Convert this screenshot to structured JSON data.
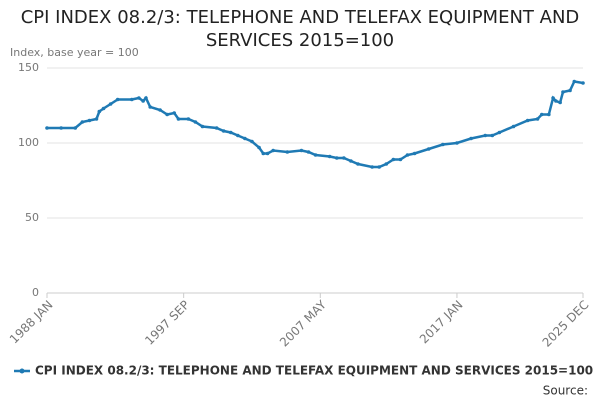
{
  "chart_data": {
    "type": "line",
    "title": "CPI INDEX 08.2/3: TELEPHONE AND TELEFAX EQUIPMENT AND SERVICES 2015=100",
    "subtitle": "Index, base year = 100",
    "source": "Source:",
    "x": [
      1988,
      1989,
      1990,
      1990.5,
      1991,
      1991.5,
      1991.7,
      1992,
      1992.5,
      1993,
      1994,
      1994.5,
      1994.8,
      1995,
      1995.3,
      1996,
      1996.5,
      1997,
      1997.3,
      1998,
      1998.5,
      1999,
      2000,
      2000.5,
      2001,
      2001.5,
      2002,
      2002.5,
      2003,
      2003.3,
      2003.6,
      2004,
      2005,
      2006,
      2006.5,
      2007,
      2008,
      2008.5,
      2009,
      2009.5,
      2010,
      2011,
      2011.5,
      2012,
      2012.5,
      2013,
      2013.5,
      2014,
      2015,
      2016,
      2017,
      2018,
      2019,
      2019.5,
      2020,
      2021,
      2022,
      2022.7,
      2023,
      2023.5,
      2023.8,
      2024,
      2024.3,
      2024.5,
      2025,
      2025.3,
      2025.917
    ],
    "series": [
      {
        "name": "CPI INDEX 08.2/3: TELEPHONE AND TELEFAX EQUIPMENT AND SERVICES 2015=100",
        "color": "#1f7ab4",
        "values": [
          110,
          110,
          110,
          114,
          115,
          116,
          121,
          123,
          126,
          129,
          129,
          130,
          128,
          130,
          124,
          122,
          119,
          120,
          116,
          116,
          114,
          111,
          110,
          108,
          107,
          105,
          103,
          101,
          97,
          93,
          93,
          95,
          94,
          95,
          94,
          92,
          91,
          90,
          90,
          88,
          86,
          84,
          84,
          86,
          89,
          89,
          92,
          93,
          96,
          99,
          100,
          103,
          105,
          105,
          107,
          111,
          115,
          116,
          119,
          119,
          130,
          128,
          127,
          134,
          135,
          141,
          140
        ]
      }
    ],
    "xlim": [
      1988,
      2025.917
    ],
    "xticks": [
      {
        "value": 1988,
        "label": "1988 JAN"
      },
      {
        "value": 1997.667,
        "label": "1997 SEP"
      },
      {
        "value": 2007.333,
        "label": "2007 MAY"
      },
      {
        "value": 2017,
        "label": "2017 JAN"
      },
      {
        "value": 2025.917,
        "label": "2025 DEC"
      }
    ],
    "ylim": [
      0,
      150
    ],
    "yticks": [
      0,
      50,
      100,
      150
    ],
    "grid": true
  }
}
